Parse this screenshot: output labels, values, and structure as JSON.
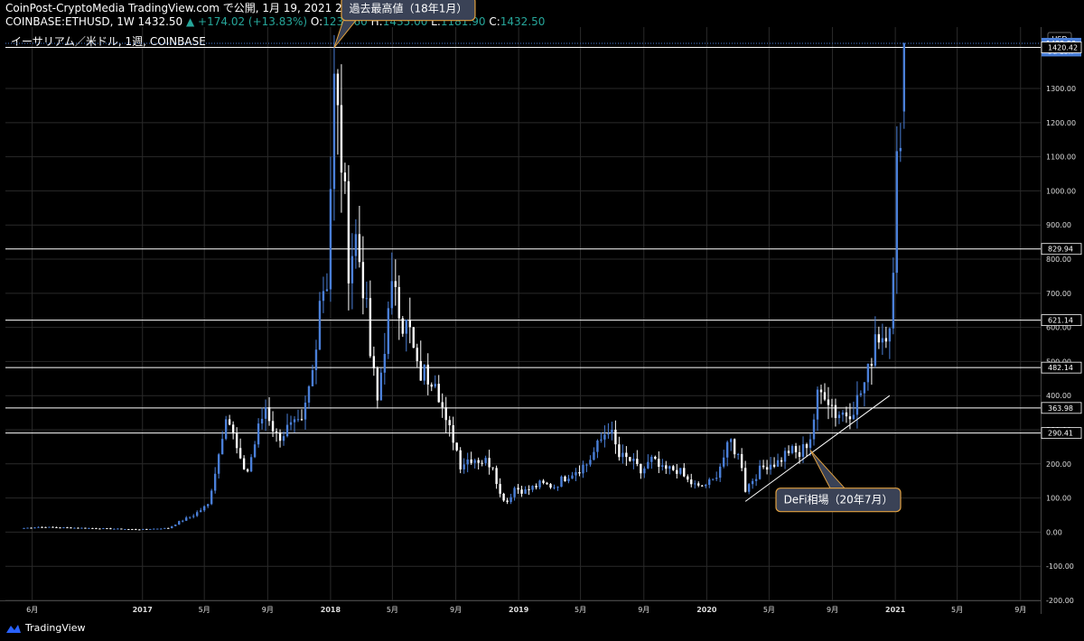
{
  "header": {
    "line1": "CoinPost-CryptoMedia TradingView.com で公開, 1月 19, 2021 20:59:13 JST",
    "symbol": "COINBASE:ETHUSD, 1W 1432.50",
    "change": "▲ +174.02 (+13.83%)",
    "o_label": "O:",
    "o": "1232.60",
    "h_label": "H:",
    "h": "1435.00",
    "l_label": "L:",
    "l": "1181.90",
    "c_label": "C:",
    "c": "1432.50"
  },
  "footer": {
    "brand": "TradingView",
    "icon": "tradingview-logo-icon"
  },
  "colors": {
    "up": "#4a7fd8",
    "down": "#ffffff",
    "grid": "#2a2a2a",
    "hline": "#ffffff",
    "callout_bg": "#3a4256",
    "callout_border": "#e0a040"
  },
  "chart_data": {
    "type": "candlestick",
    "title": "イーサリアム／米ドル, 1週, COINBASE",
    "currency": "USD",
    "ylim": [
      -200,
      1480
    ],
    "y_ticks": [
      "1300.00",
      "1200.00",
      "1100.00",
      "1000.00",
      "900.00",
      "800.00",
      "700.00",
      "600.00",
      "500.00",
      "400.00",
      "300.00",
      "200.00",
      "100.00",
      "0.00",
      "-100.00",
      "-200.00"
    ],
    "x_ticks": [
      "6月",
      "2017",
      "5月",
      "9月",
      "2018",
      "5月",
      "9月",
      "2019",
      "5月",
      "9月",
      "2020",
      "5月",
      "9月",
      "2021",
      "5月",
      "9月"
    ],
    "x_tick_dates": [
      "2016-06-01",
      "2017-01-01",
      "2017-05-01",
      "2017-09-01",
      "2018-01-01",
      "2018-05-01",
      "2018-09-01",
      "2019-01-01",
      "2019-05-01",
      "2019-09-01",
      "2020-01-01",
      "2020-05-01",
      "2020-09-01",
      "2021-01-01",
      "2021-05-01",
      "2021-09-01"
    ],
    "xlim": [
      "2016-04-10",
      "2021-10-10"
    ],
    "price_labels": [
      {
        "value": 1432.5,
        "label": "1432.50",
        "style": "current"
      },
      {
        "value": 1410,
        "label": "5d 13h",
        "style": "countdown"
      },
      {
        "value": 1420.42,
        "label": "1420.42",
        "style": "line"
      },
      {
        "value": 829.94,
        "label": "829.94",
        "style": "line"
      },
      {
        "value": 621.14,
        "label": "621.14",
        "style": "line"
      },
      {
        "value": 482.14,
        "label": "482.14",
        "style": "line"
      },
      {
        "value": 363.98,
        "label": "363.98",
        "style": "line"
      },
      {
        "value": 290.41,
        "label": "290.41",
        "style": "line"
      }
    ],
    "annotations": [
      {
        "text": "過去最高値（18年1月）",
        "date": "2018-01-08",
        "value": 1420
      },
      {
        "text": "DeFi相場（20年7月）",
        "date": "2020-07-20",
        "value": 240
      }
    ],
    "trendline": {
      "from": {
        "date": "2020-03-16",
        "value": 90
      },
      "to": {
        "date": "2020-12-21",
        "value": 400
      }
    },
    "anchors": [
      [
        "2016-05-16",
        12
      ],
      [
        "2016-06-13",
        15
      ],
      [
        "2016-09-12",
        12
      ],
      [
        "2016-12-26",
        8
      ],
      [
        "2017-02-20",
        12
      ],
      [
        "2017-03-13",
        30
      ],
      [
        "2017-04-10",
        50
      ],
      [
        "2017-05-08",
        80
      ],
      [
        "2017-05-29",
        230
      ],
      [
        "2017-06-12",
        360
      ],
      [
        "2017-07-10",
        200
      ],
      [
        "2017-07-24",
        180
      ],
      [
        "2017-08-14",
        300
      ],
      [
        "2017-08-28",
        370
      ],
      [
        "2017-09-18",
        280
      ],
      [
        "2017-10-09",
        300
      ],
      [
        "2017-11-06",
        310
      ],
      [
        "2017-11-27",
        470
      ],
      [
        "2017-12-11",
        700
      ],
      [
        "2017-12-25",
        750
      ],
      [
        "2018-01-08",
        1300
      ],
      [
        "2018-01-22",
        1100
      ],
      [
        "2018-02-05",
        800
      ],
      [
        "2018-02-19",
        860
      ],
      [
        "2018-03-05",
        740
      ],
      [
        "2018-03-19",
        520
      ],
      [
        "2018-04-02",
        380
      ],
      [
        "2018-04-16",
        560
      ],
      [
        "2018-05-07",
        750
      ],
      [
        "2018-05-21",
        620
      ],
      [
        "2018-06-04",
        580
      ],
      [
        "2018-06-18",
        470
      ],
      [
        "2018-07-09",
        460
      ],
      [
        "2018-07-23",
        470
      ],
      [
        "2018-08-13",
        310
      ],
      [
        "2018-08-27",
        280
      ],
      [
        "2018-09-10",
        200
      ],
      [
        "2018-10-01",
        220
      ],
      [
        "2018-11-12",
        200
      ],
      [
        "2018-11-26",
        110
      ],
      [
        "2018-12-10",
        90
      ],
      [
        "2018-12-24",
        130
      ],
      [
        "2019-01-14",
        120
      ],
      [
        "2019-02-11",
        140
      ],
      [
        "2019-03-11",
        135
      ],
      [
        "2019-04-08",
        170
      ],
      [
        "2019-05-13",
        200
      ],
      [
        "2019-06-03",
        250
      ],
      [
        "2019-06-24",
        310
      ],
      [
        "2019-07-15",
        220
      ],
      [
        "2019-08-05",
        210
      ],
      [
        "2019-08-26",
        175
      ],
      [
        "2019-09-16",
        210
      ],
      [
        "2019-10-07",
        180
      ],
      [
        "2019-11-04",
        185
      ],
      [
        "2019-11-25",
        150
      ],
      [
        "2019-12-16",
        130
      ],
      [
        "2020-01-13",
        150
      ],
      [
        "2020-02-03",
        220
      ],
      [
        "2020-02-17",
        265
      ],
      [
        "2020-03-09",
        200
      ],
      [
        "2020-03-16",
        125
      ],
      [
        "2020-04-06",
        170
      ],
      [
        "2020-04-27",
        200
      ],
      [
        "2020-05-18",
        205
      ],
      [
        "2020-06-08",
        240
      ],
      [
        "2020-06-29",
        225
      ],
      [
        "2020-07-20",
        280
      ],
      [
        "2020-08-03",
        390
      ],
      [
        "2020-08-17",
        420
      ],
      [
        "2020-09-07",
        350
      ],
      [
        "2020-09-28",
        350
      ],
      [
        "2020-10-19",
        385
      ],
      [
        "2020-11-09",
        460
      ],
      [
        "2020-11-23",
        590
      ],
      [
        "2020-12-07",
        580
      ],
      [
        "2020-12-21",
        640
      ],
      [
        "2020-12-28",
        730
      ],
      [
        "2021-01-04",
        1050
      ],
      [
        "2021-01-11",
        1230
      ],
      [
        "2021-01-18",
        1432.5
      ]
    ]
  }
}
